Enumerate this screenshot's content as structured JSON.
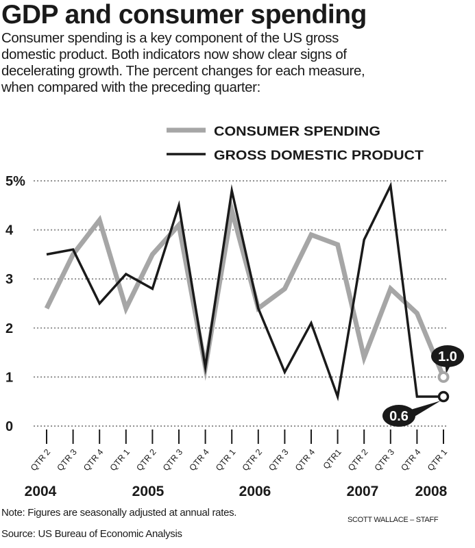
{
  "header": {
    "title": "GDP and consumer spending",
    "subtitle_lines": [
      "Consumer spending is a key component of the US gross",
      "domestic product. Both indicators now show clear signs of",
      "decelerating growth. The percent changes for each measure,",
      "when compared with the preceding quarter:"
    ]
  },
  "chart_data": {
    "type": "line",
    "title": "",
    "xlabel": "",
    "ylabel": "",
    "ylim": [
      0,
      5
    ],
    "yticks": [
      "0",
      "1",
      "2",
      "3",
      "4",
      "5%"
    ],
    "grid": true,
    "grid_style": "dotted horizontal",
    "legend_placement": "top",
    "categories": [
      "QTR 2",
      "QTR 3",
      "QTR 4",
      "QTR 1",
      "QTR 2",
      "QTR 3",
      "QTR 4",
      "QTR 1",
      "QTR 2",
      "QTR 3",
      "QTR 4",
      "QTR1",
      "QTR 2",
      "QTR 3",
      "QTR 4",
      "QTR 1"
    ],
    "year_labels": [
      {
        "label": "2004",
        "at_index": 0
      },
      {
        "label": "2005",
        "at_index": 4
      },
      {
        "label": "2006",
        "at_index": 8
      },
      {
        "label": "2007",
        "at_index": 12
      },
      {
        "label": "2008",
        "at_index": 15
      }
    ],
    "series": [
      {
        "name": "CONSUMER SPENDING",
        "color": "#a6a6a6",
        "values": [
          2.4,
          3.5,
          4.2,
          2.4,
          3.5,
          4.1,
          1.2,
          4.4,
          2.4,
          2.8,
          3.9,
          3.7,
          1.4,
          2.8,
          2.3,
          1.0
        ]
      },
      {
        "name": "GROSS DOMESTIC PRODUCT",
        "color": "#1a1a1a",
        "values": [
          3.5,
          3.6,
          2.5,
          3.1,
          2.8,
          4.5,
          1.2,
          4.8,
          2.4,
          1.1,
          2.1,
          0.6,
          3.8,
          4.9,
          0.6,
          0.6
        ]
      }
    ],
    "annotations": [
      {
        "series": 0,
        "index": 15,
        "label": "1.0"
      },
      {
        "series": 1,
        "index": 15,
        "label": "0.6"
      }
    ]
  },
  "footer": {
    "note": "Note: Figures are seasonally adjusted at annual rates.",
    "source": "Source: US Bureau of Economic Analysis",
    "credit": "SCOTT WALLACE – STAFF"
  }
}
